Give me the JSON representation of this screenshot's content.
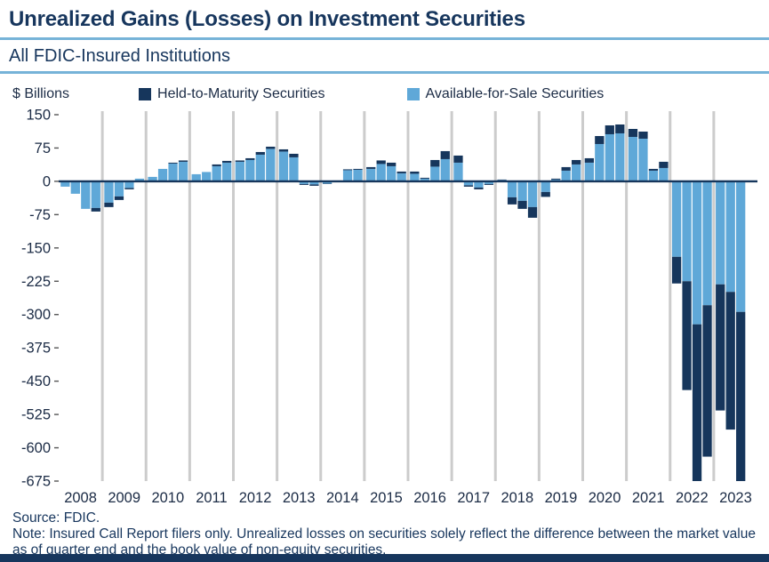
{
  "header": {
    "title": "Unrealized Gains (Losses) on Investment Securities",
    "subtitle": "All FDIC-Insured Institutions"
  },
  "chart_data": {
    "type": "bar",
    "stacked": true,
    "units_label": "$ Billions",
    "ylim": [
      -675,
      150
    ],
    "yticks": [
      150,
      75,
      0,
      -75,
      -150,
      -225,
      -300,
      -375,
      -450,
      -525,
      -600,
      -675
    ],
    "grid": "vertical-year-separators",
    "legend_position": "top",
    "years": [
      "2008",
      "2009",
      "2010",
      "2011",
      "2012",
      "2013",
      "2014",
      "2015",
      "2016",
      "2017",
      "2018",
      "2019",
      "2020",
      "2021",
      "2022",
      "2023"
    ],
    "quarters_per_year": [
      4,
      4,
      4,
      4,
      4,
      4,
      4,
      4,
      4,
      4,
      4,
      4,
      4,
      4,
      4,
      3
    ],
    "series": [
      {
        "name": "Held-to-Maturity Securities",
        "color": "#16365c",
        "values": [
          0,
          0,
          0,
          -8,
          -10,
          -8,
          -3,
          0,
          0,
          0,
          2,
          3,
          0,
          0,
          4,
          4,
          3,
          4,
          6,
          5,
          5,
          8,
          -2,
          -3,
          -1,
          0,
          2,
          2,
          4,
          8,
          8,
          4,
          5,
          2,
          15,
          18,
          16,
          -3,
          -4,
          -2,
          1,
          -16,
          -18,
          -24,
          -11,
          2,
          8,
          10,
          10,
          18,
          20,
          20,
          18,
          16,
          4,
          14,
          -60,
          -245,
          -368,
          -341,
          -284,
          -310,
          -390
        ]
      },
      {
        "name": "Available-for-Sale Securities",
        "color": "#5fa8d8",
        "values": [
          -12,
          -28,
          -62,
          -60,
          -48,
          -34,
          -15,
          6,
          10,
          28,
          40,
          44,
          16,
          21,
          34,
          42,
          44,
          48,
          60,
          73,
          67,
          54,
          -6,
          -7,
          -5,
          2,
          25,
          26,
          28,
          39,
          34,
          18,
          17,
          6,
          33,
          50,
          42,
          -9,
          -14,
          -6,
          3,
          -36,
          -44,
          -58,
          -24,
          4,
          24,
          38,
          42,
          84,
          106,
          108,
          100,
          96,
          24,
          30,
          -170,
          -225,
          -322,
          -279,
          -232,
          -249,
          -294
        ]
      }
    ]
  },
  "footer": {
    "source": "Source: FDIC.",
    "note": "Note: Insured Call Report filers only. Unrealized losses on securities solely reflect the difference between the market value as of quarter end and the book value of non-equity securities."
  },
  "colors": {
    "text": "#1b2b45",
    "gridline": "#cccccc",
    "rule": "#76b3d8",
    "bottom_bar": "#17365d"
  }
}
